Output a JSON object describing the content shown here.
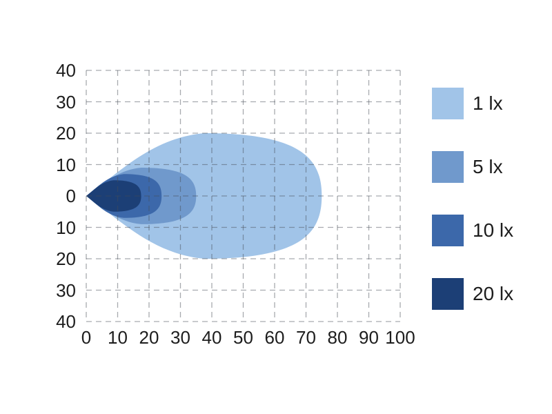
{
  "chart_data": {
    "type": "area",
    "subtype": "isolux-contour",
    "title": "",
    "xlabel": "",
    "ylabel": "",
    "xlim": [
      0,
      100
    ],
    "ylim": [
      -40,
      40
    ],
    "grid": true,
    "grid_style": "dashed",
    "grid_color": "#b7b9bc",
    "x_ticks": {
      "values": [
        0,
        10,
        20,
        30,
        40,
        50,
        60,
        70,
        80,
        90,
        100
      ],
      "labels": [
        "0",
        "10",
        "20",
        "30",
        "40",
        "50",
        "60",
        "70",
        "80",
        "90",
        "100"
      ]
    },
    "y_ticks": {
      "values": [
        40,
        30,
        20,
        10,
        0,
        -10,
        -20,
        -30,
        -40
      ],
      "labels": [
        "40",
        "30",
        "20",
        "10",
        "0",
        "10",
        "20",
        "30",
        "40"
      ]
    },
    "legend_position": "right",
    "series": [
      {
        "name": "1 lx",
        "lux": 1,
        "color": "#A1C4E8",
        "origin_x": 0,
        "reach_x": 75,
        "half_height_y": 20
      },
      {
        "name": "5 lx",
        "lux": 5,
        "color": "#7099CC",
        "origin_x": 0,
        "reach_x": 35,
        "half_height_y": 9
      },
      {
        "name": "10 lx",
        "lux": 10,
        "color": "#3C68AA",
        "origin_x": 0,
        "reach_x": 24,
        "half_height_y": 7
      },
      {
        "name": "20 lx",
        "lux": 20,
        "color": "#1C3F76",
        "origin_x": 0,
        "reach_x": 17.5,
        "half_height_y": 5
      }
    ]
  },
  "legend": {
    "items": [
      {
        "label": "1 lx",
        "color": "#A1C4E8"
      },
      {
        "label": "5 lx",
        "color": "#7099CC"
      },
      {
        "label": "10 lx",
        "color": "#3C68AA"
      },
      {
        "label": "20 lx",
        "color": "#1C3F76"
      }
    ]
  }
}
